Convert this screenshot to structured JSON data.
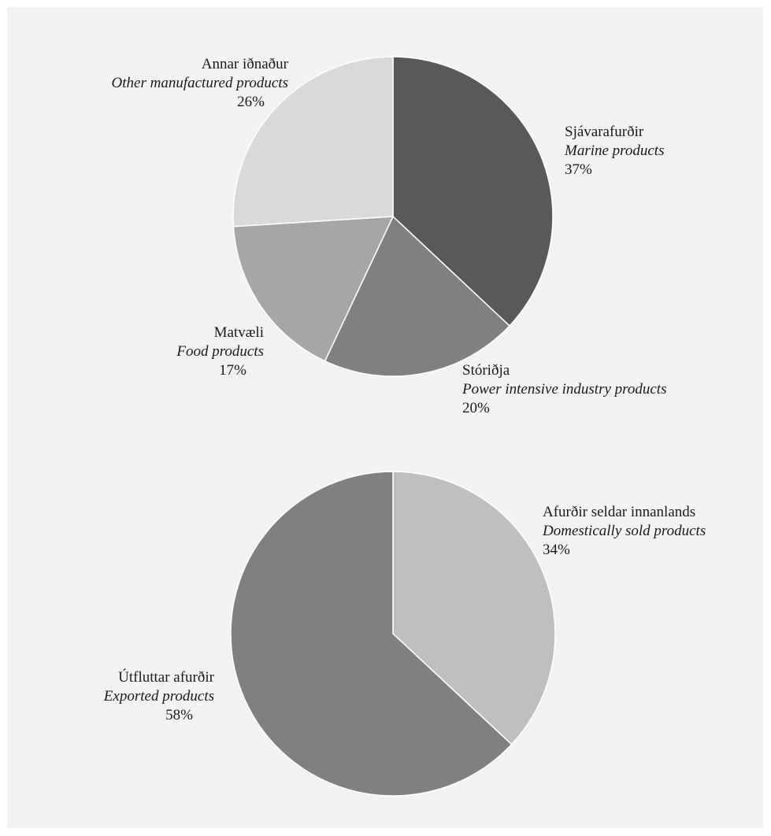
{
  "chart_data": [
    {
      "type": "pie",
      "slices": [
        {
          "label": "Sjávarafurðir",
          "label_en": "Marine products",
          "value": 37,
          "value_label": "37%",
          "color": "#595959"
        },
        {
          "label": "Stóriðja",
          "label_en": "Power intensive industry products",
          "value": 20,
          "value_label": "20%",
          "color": "#808080"
        },
        {
          "label": "Matvæli",
          "label_en": "Food products",
          "value": 17,
          "value_label": "17%",
          "color": "#a6a6a6"
        },
        {
          "label": "Annar iðnaður",
          "label_en": "Other manufactured products",
          "value": 26,
          "value_label": "26%",
          "color": "#d9d9d9"
        }
      ]
    },
    {
      "type": "pie",
      "slices": [
        {
          "label": "Afurðir seldar innanlands",
          "label_en": "Domestically sold products",
          "value": 34,
          "value_label": "34%",
          "color": "#bfbfbf"
        },
        {
          "label": "Útfluttar afurðir",
          "label_en": "Exported products",
          "value": 58,
          "value_label": "58%",
          "color": "#808080"
        }
      ]
    }
  ]
}
